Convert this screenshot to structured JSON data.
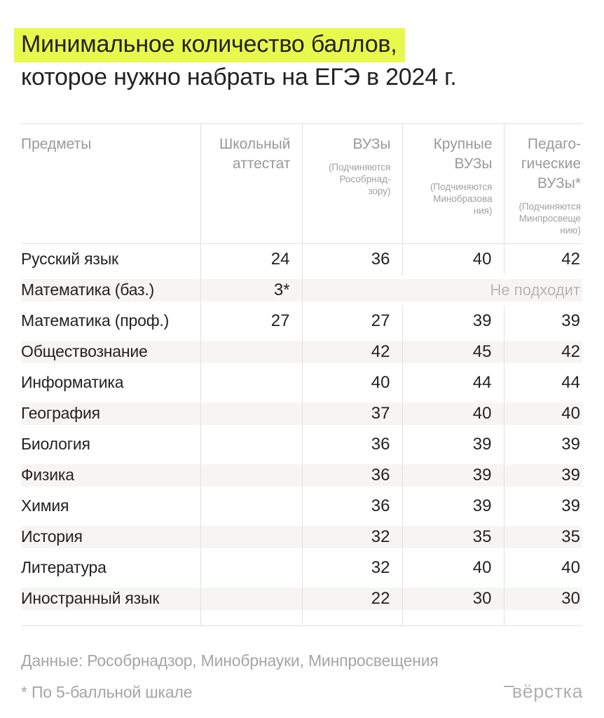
{
  "title": {
    "highlighted_part": "Минимальное количество баллов,",
    "rest_part": "которое нужно набрать на ЕГЭ в 2024 г."
  },
  "table": {
    "columns": [
      {
        "label": "Предметы",
        "sub": ""
      },
      {
        "label": "Школьный\nаттестат",
        "sub": ""
      },
      {
        "label": "ВУЗы",
        "sub": "(Подчиняются\nРособрнад-\nзору)"
      },
      {
        "label": "Крупные\nВУЗы",
        "sub": "(Подчиняются\nМинобразова\nния)"
      },
      {
        "label": "Педаго-\nгические\nВУЗы*",
        "sub": "(Подчиняются\nМинпросвеще\nнию)"
      }
    ],
    "rows": [
      {
        "subject": "Русский язык",
        "values": [
          "24",
          "36",
          "40",
          "42"
        ]
      },
      {
        "subject": "Математика (баз.)",
        "values": [
          "3*"
        ],
        "merged_note": "Не подходит"
      },
      {
        "subject": "Математика (проф.)",
        "values": [
          "27",
          "27",
          "39",
          "39"
        ]
      },
      {
        "subject": "Обществознание",
        "values": [
          "",
          "42",
          "45",
          "42"
        ]
      },
      {
        "subject": "Информатика",
        "values": [
          "",
          "40",
          "44",
          "44"
        ]
      },
      {
        "subject": "География",
        "values": [
          "",
          "37",
          "40",
          "40"
        ]
      },
      {
        "subject": "Биология",
        "values": [
          "",
          "36",
          "39",
          "39"
        ]
      },
      {
        "subject": "Физика",
        "values": [
          "",
          "36",
          "39",
          "39"
        ]
      },
      {
        "subject": "Химия",
        "values": [
          "",
          "36",
          "39",
          "39"
        ]
      },
      {
        "subject": "История",
        "values": [
          "",
          "32",
          "35",
          "35"
        ]
      },
      {
        "subject": "Литература",
        "values": [
          "",
          "32",
          "40",
          "40"
        ]
      },
      {
        "subject": "Иностранный язык",
        "values": [
          "",
          "22",
          "30",
          "30"
        ]
      }
    ]
  },
  "footer": {
    "source": "Данные: Рособрнадзор, Минобрнауки, Минпросвещения",
    "footnote": "* По 5-балльной шкале",
    "logo": "вёрстка"
  },
  "colors": {
    "highlight": "#e8f94d",
    "stripe": "#f7f5f4",
    "line": "#e2e0e0",
    "ink": "#242122",
    "header_gray": "#9b9898",
    "note_gray": "#b8b5b5",
    "footer_gray": "#a7a4a4",
    "background": "#ffffff"
  },
  "chart_data": {
    "type": "table",
    "title": "Минимальное количество баллов, которое нужно набрать на ЕГЭ в 2024 г.",
    "columns": [
      "Предметы",
      "Школьный аттестат",
      "ВУЗы (Подчиняются Рособрнадзору)",
      "Крупные ВУЗы (Подчиняются Минобразования)",
      "Педагогические ВУЗы* (Подчиняются Минпросвещению)"
    ],
    "rows": [
      [
        "Русский язык",
        24,
        36,
        40,
        42
      ],
      [
        "Математика (баз.)",
        "3*",
        "Не подходит",
        "Не подходит",
        "Не подходит"
      ],
      [
        "Математика (проф.)",
        27,
        27,
        39,
        39
      ],
      [
        "Обществознание",
        null,
        42,
        45,
        42
      ],
      [
        "Информатика",
        null,
        40,
        44,
        44
      ],
      [
        "География",
        null,
        37,
        40,
        40
      ],
      [
        "Биология",
        null,
        36,
        39,
        39
      ],
      [
        "Физика",
        null,
        36,
        39,
        39
      ],
      [
        "Химия",
        null,
        36,
        39,
        39
      ],
      [
        "История",
        null,
        32,
        35,
        35
      ],
      [
        "Литература",
        null,
        32,
        40,
        40
      ],
      [
        "Иностранный язык",
        null,
        22,
        30,
        30
      ]
    ],
    "annotations": [
      "* По 5-балльной шкале",
      "Данные: Рособрнадзор, Минобрнауки, Минпросвещения"
    ]
  }
}
